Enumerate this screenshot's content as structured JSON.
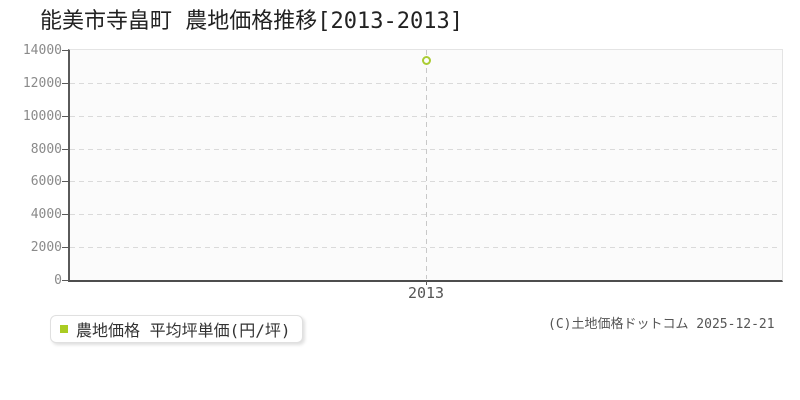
{
  "header": {
    "title": "能美市寺畠町 農地価格推移[2013-2013]"
  },
  "legend": {
    "label": "農地価格 平均坪単価(円/坪)",
    "marker_color": "#aacc22"
  },
  "footer": {
    "copyright": "(C)土地価格ドットコム 2025-12-21"
  },
  "chart_data": {
    "type": "scatter",
    "title": "能美市寺畠町 農地価格推移[2013-2013]",
    "categories": [
      "2013"
    ],
    "series": [
      {
        "name": "農地価格 平均坪単価(円/坪)",
        "values": [
          13400
        ],
        "color": "#aacc33",
        "marker": "hollow-circle"
      }
    ],
    "xlabel": "",
    "ylabel": "",
    "ylim": [
      0,
      14000
    ],
    "yticks": [
      0,
      2000,
      4000,
      6000,
      8000,
      10000,
      12000,
      14000
    ],
    "grid": {
      "horizontal": "dashed",
      "vertical": "dashed-at-category"
    },
    "legend_position": "bottom-left",
    "colors": {
      "plot_background": "#fbfbfb",
      "plot_border": "#e4e4e4",
      "axis": "#5a5a5a",
      "grid": "#dadada",
      "tick_label": "#8a8a8a",
      "x_tick_label": "#555555",
      "point_stroke": "#aacc33"
    }
  }
}
